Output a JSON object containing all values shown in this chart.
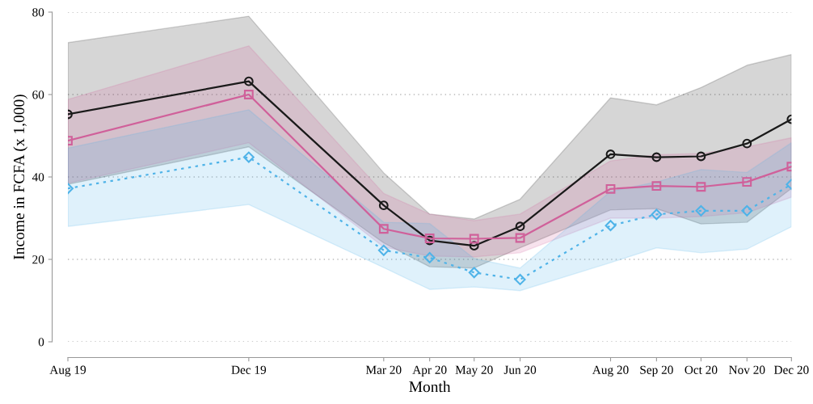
{
  "chart_data": {
    "type": "line",
    "xlabel": "Month",
    "ylabel": "Income in FCFA (x 1,000)",
    "x": [
      "2019-08",
      "2019-12",
      "2020-03",
      "2020-04",
      "2020-05",
      "2020-06",
      "2020-08",
      "2020-09",
      "2020-10",
      "2020-11",
      "2020-12"
    ],
    "xlim": [
      "2019-08",
      "2020-12"
    ],
    "xticks": [
      {
        "value": "2019-08",
        "label": "Aug 19"
      },
      {
        "value": "2019-12",
        "label": "Dec 19"
      },
      {
        "value": "2020-03",
        "label": "Mar 20"
      },
      {
        "value": "2020-04",
        "label": "Apr 20"
      },
      {
        "value": "2020-05",
        "label": "May 20"
      },
      {
        "value": "2020-06",
        "label": "Jun 20"
      },
      {
        "value": "2020-08",
        "label": "Aug 20"
      },
      {
        "value": "2020-09",
        "label": "Sep 20"
      },
      {
        "value": "2020-10",
        "label": "Oct 20"
      },
      {
        "value": "2020-11",
        "label": "Nov 20"
      },
      {
        "value": "2020-12",
        "label": "Dec 20"
      }
    ],
    "ylim": [
      0,
      80
    ],
    "yticks": [
      0,
      20,
      40,
      60,
      80
    ],
    "grid": "y",
    "legend": false,
    "series": [
      {
        "color": "#1a1a1a",
        "marker": "circle",
        "line_style": "solid",
        "values": [
          55.2,
          63.2,
          33.1,
          24.6,
          23.3,
          28.0,
          45.5,
          44.8,
          45.0,
          48.1,
          54.0
        ],
        "upper": [
          72.6,
          79.0,
          41.0,
          31.0,
          29.8,
          34.6,
          59.2,
          57.5,
          61.7,
          67.1,
          69.7
        ],
        "lower": [
          38.2,
          47.3,
          24.0,
          18.2,
          17.9,
          22.8,
          32.0,
          32.3,
          28.6,
          29.0,
          37.2
        ]
      },
      {
        "color": "#d0609a",
        "marker": "square",
        "line_style": "solid",
        "values": [
          48.8,
          60.0,
          27.4,
          25.1,
          25.0,
          25.2,
          37.1,
          37.8,
          37.6,
          38.8,
          42.5
        ],
        "upper": [
          58.8,
          71.8,
          36.0,
          31.0,
          29.4,
          31.0,
          43.9,
          45.4,
          45.7,
          47.3,
          49.5
        ],
        "lower": [
          38.5,
          48.3,
          23.0,
          20.8,
          20.6,
          21.6,
          30.0,
          30.0,
          30.4,
          31.3,
          35.1
        ]
      },
      {
        "color": "#4fb3e8",
        "marker": "diamond",
        "line_style": "dotted",
        "values": [
          37.2,
          44.8,
          22.2,
          20.4,
          16.8,
          15.1,
          28.2,
          30.9,
          31.8,
          31.8,
          38.2
        ],
        "upper": [
          47.0,
          56.3,
          29.0,
          28.7,
          20.2,
          17.9,
          36.5,
          38.8,
          41.8,
          41.1,
          48.3
        ],
        "lower": [
          28.0,
          33.3,
          18.0,
          12.7,
          13.3,
          12.4,
          19.2,
          22.8,
          21.6,
          22.5,
          27.9
        ]
      }
    ]
  }
}
